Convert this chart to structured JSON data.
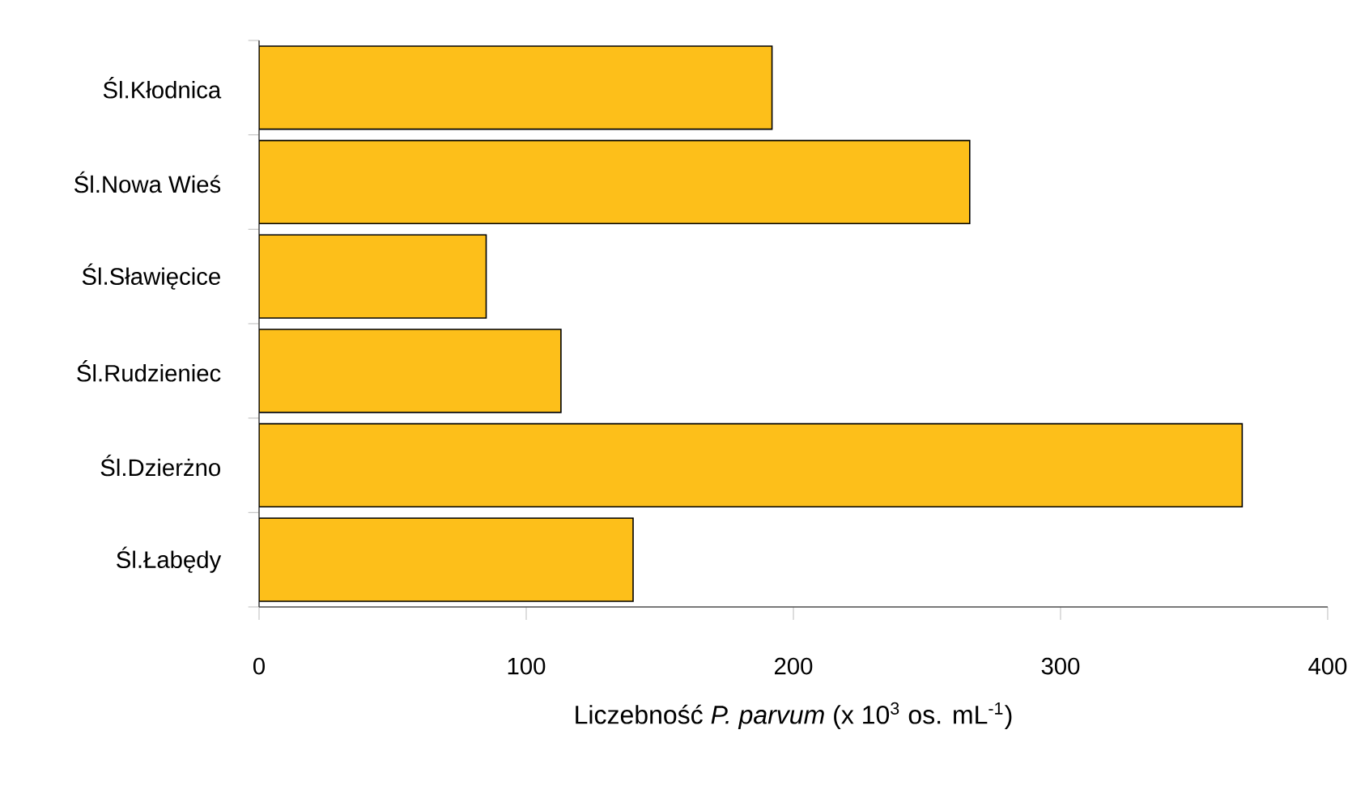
{
  "chart_data": {
    "type": "bar",
    "orientation": "horizontal",
    "categories": [
      "Śl.Kłodnica",
      "Śl.Nowa Wieś",
      "Śl.Sławięcice",
      "Śl.Rudzieniec",
      "Śl.Dzierżno",
      "Śl.Łabędy"
    ],
    "values": [
      192,
      266,
      85,
      113,
      368,
      140
    ],
    "color": "#fdbf1a",
    "xlabel": "Liczebność *P. parvum* (x 10$^{3}$ os. mL$^{-1}$)",
    "xlim": [
      0,
      400
    ],
    "xticks": [
      0,
      100,
      200,
      300,
      400
    ],
    "grid": false
  }
}
